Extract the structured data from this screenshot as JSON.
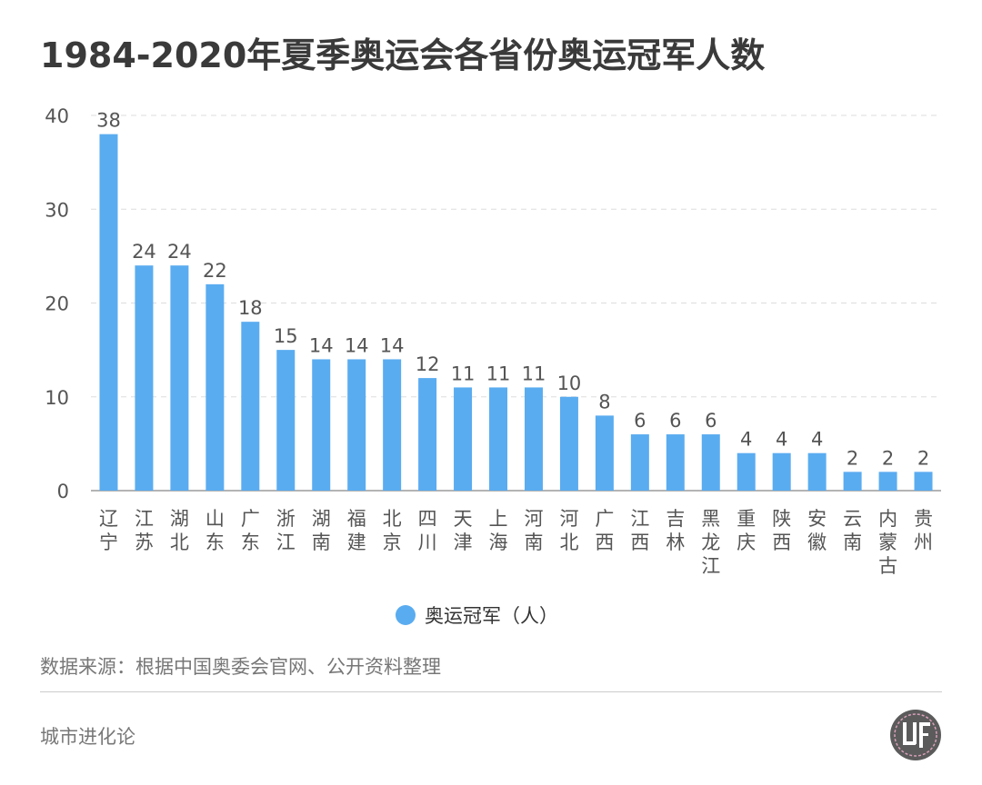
{
  "title": "1984-2020年夏季奥运会各省份奥运冠军人数",
  "source": "数据来源：根据中国奥委会官网、公开资料整理",
  "brand": "城市进化论",
  "colors": {
    "bar": "#5aacf0",
    "grid": "#dddddd",
    "axis": "#888888",
    "text": "#555555"
  },
  "chart_data": {
    "type": "bar",
    "categories": [
      "辽宁",
      "江苏",
      "湖北",
      "山东",
      "广东",
      "浙江",
      "湖南",
      "福建",
      "北京",
      "四川",
      "天津",
      "上海",
      "河南",
      "河北",
      "广西",
      "江西",
      "吉林",
      "黑龙江",
      "重庆",
      "陕西",
      "安徽",
      "云南",
      "内蒙古",
      "贵州"
    ],
    "series": [
      {
        "name": "奥运冠军（人）",
        "values": [
          38,
          24,
          24,
          22,
          18,
          15,
          14,
          14,
          14,
          12,
          11,
          11,
          11,
          10,
          8,
          6,
          6,
          6,
          4,
          4,
          4,
          2,
          2,
          2
        ]
      }
    ],
    "ylim": [
      0,
      40
    ],
    "yticks": [
      0,
      10,
      20,
      30,
      40
    ],
    "grid": true,
    "legend": "bottom-center"
  }
}
